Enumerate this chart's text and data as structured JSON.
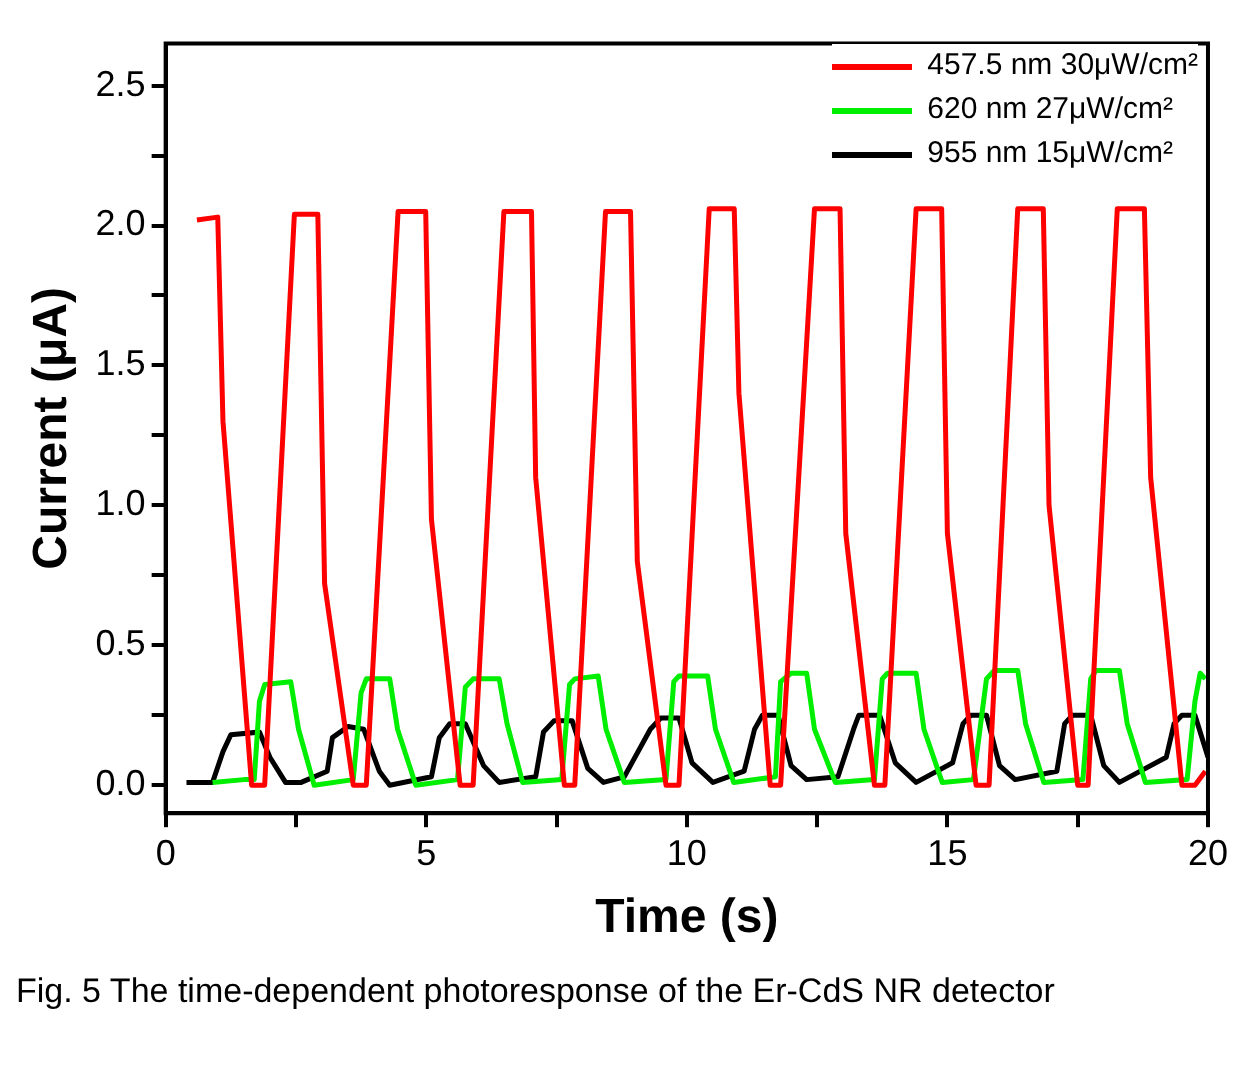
{
  "chart_data": {
    "type": "line",
    "xlabel": "Time (s)",
    "ylabel": "Current (μA)",
    "xlim": [
      0,
      20
    ],
    "ylim": [
      -0.1,
      2.65
    ],
    "xticks": [
      0,
      {
        "value": 2.5,
        "label": null
      },
      5,
      {
        "value": 7.5,
        "label": null
      },
      10,
      {
        "value": 12.5,
        "label": null
      },
      15,
      {
        "value": 17.5,
        "label": null
      },
      20
    ],
    "yticks": [
      {
        "value": 0,
        "label": "0.0"
      },
      {
        "value": 0.25,
        "label": null
      },
      {
        "value": 0.5,
        "label": "0.5"
      },
      {
        "value": 0.75,
        "label": null
      },
      {
        "value": 1,
        "label": "1.0"
      },
      {
        "value": 1.25,
        "label": null
      },
      {
        "value": 1.5,
        "label": "1.5"
      },
      {
        "value": 1.75,
        "label": null
      },
      {
        "value": 2,
        "label": "2.0"
      },
      {
        "value": 2.25,
        "label": null
      },
      {
        "value": 2.5,
        "label": "2.5"
      }
    ],
    "grid": false,
    "legend": "top right",
    "marker": "none",
    "line_style": "solid",
    "annotations": [
      "Fig. 5 The time-dependent photoresponse of the Er-CdS NR detector"
    ],
    "series": [
      {
        "name": "457.5 nm 30μW/cm²",
        "color": "#ff0000",
        "x": [
          0.6,
          1.0,
          1.1,
          1.65,
          1.9,
          2.47,
          2.92,
          3.05,
          3.6,
          3.85,
          4.46,
          4.99,
          5.1,
          5.65,
          5.9,
          6.49,
          7.02,
          7.1,
          7.65,
          7.85,
          8.44,
          8.92,
          9.05,
          9.6,
          9.85,
          10.43,
          10.91,
          11.0,
          11.6,
          11.8,
          12.45,
          12.94,
          13.05,
          13.6,
          13.8,
          14.4,
          14.89,
          15.0,
          15.55,
          15.8,
          16.35,
          16.84,
          16.95,
          17.5,
          17.7,
          18.26,
          18.78,
          18.9,
          19.5,
          19.75,
          19.95
        ],
        "values": [
          2.02,
          2.03,
          1.3,
          0,
          0,
          2.04,
          2.04,
          0.72,
          0,
          0,
          2.05,
          2.05,
          0.95,
          0,
          0,
          2.05,
          2.05,
          1.1,
          0,
          0,
          2.05,
          2.05,
          0.8,
          0,
          0,
          2.06,
          2.06,
          1.4,
          0,
          0,
          2.06,
          2.06,
          0.9,
          0,
          0,
          2.06,
          2.06,
          0.9,
          0,
          0,
          2.06,
          2.06,
          1.0,
          0,
          0,
          2.06,
          2.06,
          1.1,
          0,
          0,
          0.05
        ]
      },
      {
        "name": "620 nm 27μW/cm²",
        "color": "#00ee00",
        "x": [
          0.9,
          1.5,
          1.7,
          1.8,
          1.9,
          2.4,
          2.55,
          2.85,
          3.6,
          3.75,
          3.85,
          4.3,
          4.45,
          4.8,
          5.6,
          5.75,
          5.9,
          6.4,
          6.55,
          6.85,
          7.6,
          7.75,
          7.85,
          8.3,
          8.45,
          8.8,
          9.6,
          9.75,
          9.85,
          10.4,
          10.55,
          10.9,
          11.7,
          11.8,
          12.0,
          12.3,
          12.45,
          12.85,
          13.6,
          13.75,
          13.85,
          14.4,
          14.55,
          14.9,
          15.5,
          15.75,
          15.9,
          16.35,
          16.5,
          16.85,
          17.6,
          17.75,
          17.85,
          18.3,
          18.45,
          18.8,
          19.6,
          19.75,
          19.85,
          19.95
        ],
        "values": [
          0.01,
          0.02,
          0.02,
          0.3,
          0.36,
          0.37,
          0.2,
          0,
          0.02,
          0.33,
          0.38,
          0.38,
          0.2,
          0,
          0.02,
          0.35,
          0.38,
          0.38,
          0.22,
          0.01,
          0.02,
          0.36,
          0.38,
          0.39,
          0.2,
          0.01,
          0.02,
          0.37,
          0.39,
          0.39,
          0.2,
          0.01,
          0.03,
          0.37,
          0.4,
          0.4,
          0.2,
          0.01,
          0.02,
          0.38,
          0.4,
          0.4,
          0.2,
          0.01,
          0.02,
          0.38,
          0.41,
          0.41,
          0.22,
          0.01,
          0.02,
          0.38,
          0.41,
          0.41,
          0.22,
          0.01,
          0.02,
          0.3,
          0.4,
          0.38
        ]
      },
      {
        "name": "955 nm 15μW/cm²",
        "color": "#000000",
        "x": [
          0.4,
          0.9,
          1.1,
          1.25,
          1.8,
          2.0,
          2.3,
          2.6,
          3.1,
          3.2,
          3.5,
          3.8,
          4.1,
          4.3,
          5.1,
          5.25,
          5.45,
          5.75,
          6.1,
          6.4,
          7.1,
          7.25,
          7.45,
          7.8,
          8.1,
          8.4,
          8.8,
          9.3,
          9.5,
          9.85,
          10.1,
          10.5,
          11.1,
          11.3,
          11.45,
          11.75,
          12.0,
          12.3,
          12.9,
          13.2,
          13.3,
          13.7,
          14.0,
          14.4,
          15.1,
          15.3,
          15.45,
          15.75,
          16.0,
          16.3,
          17.1,
          17.25,
          17.4,
          17.75,
          18.0,
          18.3,
          19.2,
          19.35,
          19.5,
          19.75,
          20
        ],
        "values": [
          0.01,
          0.01,
          0.12,
          0.18,
          0.19,
          0.1,
          0.01,
          0.01,
          0.05,
          0.17,
          0.21,
          0.2,
          0.05,
          0,
          0.03,
          0.17,
          0.22,
          0.22,
          0.07,
          0.01,
          0.03,
          0.19,
          0.23,
          0.23,
          0.06,
          0.01,
          0.03,
          0.2,
          0.24,
          0.24,
          0.08,
          0.01,
          0.05,
          0.2,
          0.25,
          0.25,
          0.07,
          0.02,
          0.03,
          0.2,
          0.25,
          0.25,
          0.08,
          0.01,
          0.08,
          0.22,
          0.25,
          0.25,
          0.07,
          0.02,
          0.05,
          0.22,
          0.25,
          0.25,
          0.07,
          0.01,
          0.1,
          0.22,
          0.25,
          0.25,
          0.1
        ]
      }
    ]
  }
}
